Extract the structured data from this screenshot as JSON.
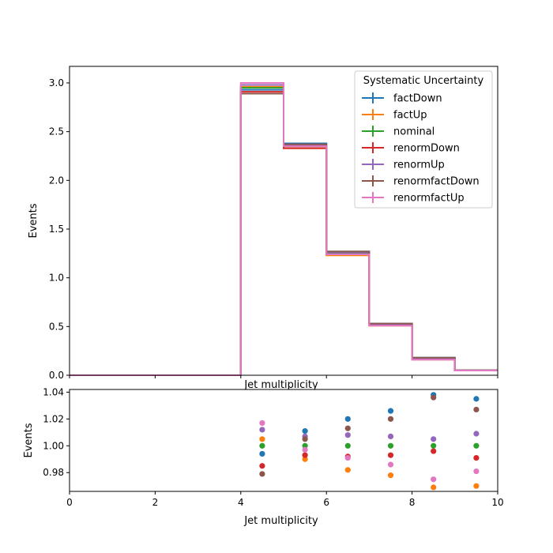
{
  "chart_data": [
    {
      "type": "line",
      "drawstyle": "steps",
      "ylabel": "Events",
      "xlabel": "Jet multiplicity",
      "xlim": [
        0,
        10
      ],
      "ylim": [
        0,
        3.17
      ],
      "x_ticks": [
        0,
        2,
        4,
        6,
        8,
        10
      ],
      "y_ticks": [
        0.0,
        0.5,
        1.0,
        1.5,
        2.0,
        2.5,
        3.0
      ],
      "y_tick_labels": [
        "0.0",
        "0.5",
        "1.0",
        "1.5",
        "2.0",
        "2.5",
        "3.0"
      ],
      "x_tick_labels_shown": false,
      "bin_edges": [
        0,
        1,
        2,
        3,
        4,
        5,
        6,
        7,
        8,
        9,
        10
      ],
      "legend_title": "Systematic Uncertainty",
      "legend_position": "upper-right",
      "series": [
        {
          "name": "factDown",
          "color": "#1f77b4",
          "values": [
            0,
            0,
            0,
            0,
            2.93,
            2.38,
            1.27,
            0.53,
            0.18,
            0.052
          ]
        },
        {
          "name": "factUp",
          "color": "#ff7f0e",
          "values": [
            0,
            0,
            0,
            0,
            2.96,
            2.33,
            1.23,
            0.51,
            0.16,
            0.049
          ]
        },
        {
          "name": "nominal",
          "color": "#2ca02c",
          "values": [
            0,
            0,
            0,
            0,
            2.95,
            2.35,
            1.25,
            0.52,
            0.17,
            0.05
          ]
        },
        {
          "name": "renormDown",
          "color": "#d62728",
          "values": [
            0,
            0,
            0,
            0,
            2.91,
            2.33,
            1.24,
            0.51,
            0.17,
            0.05
          ]
        },
        {
          "name": "renormUp",
          "color": "#9467bd",
          "values": [
            0,
            0,
            0,
            0,
            2.98,
            2.36,
            1.26,
            0.52,
            0.17,
            0.05
          ]
        },
        {
          "name": "renormfactDown",
          "color": "#8c564b",
          "values": [
            0,
            0,
            0,
            0,
            2.89,
            2.37,
            1.27,
            0.53,
            0.18,
            0.051
          ]
        },
        {
          "name": "renormfactUp",
          "color": "#e377c2",
          "values": [
            0,
            0,
            0,
            0,
            3.0,
            2.35,
            1.24,
            0.51,
            0.16,
            0.049
          ]
        }
      ]
    },
    {
      "type": "scatter",
      "ylabel": "Events",
      "xlabel": "Jet multiplicity",
      "xlim": [
        0,
        10
      ],
      "ylim": [
        0.966,
        1.042
      ],
      "x_ticks": [
        0,
        2,
        4,
        6,
        8,
        10
      ],
      "x_tick_labels": [
        "0",
        "2",
        "4",
        "6",
        "8",
        "10"
      ],
      "y_ticks": [
        0.98,
        1.0,
        1.02,
        1.04
      ],
      "y_tick_labels": [
        "0.98",
        "1.00",
        "1.02",
        "1.04"
      ],
      "x": [
        4.5,
        5.5,
        6.5,
        7.5,
        8.5,
        9.5
      ],
      "series": [
        {
          "name": "factDown",
          "color": "#1f77b4",
          "values": [
            0.994,
            1.011,
            1.02,
            1.026,
            1.038,
            1.035
          ]
        },
        {
          "name": "factUp",
          "color": "#ff7f0e",
          "values": [
            1.005,
            0.99,
            0.982,
            0.978,
            0.969,
            0.97
          ]
        },
        {
          "name": "nominal",
          "color": "#2ca02c",
          "values": [
            1.0,
            1.0,
            1.0,
            1.0,
            1.0,
            1.0
          ]
        },
        {
          "name": "renormDown",
          "color": "#d62728",
          "values": [
            0.985,
            0.993,
            0.992,
            0.993,
            0.996,
            0.991
          ]
        },
        {
          "name": "renormUp",
          "color": "#9467bd",
          "values": [
            1.012,
            1.007,
            1.008,
            1.007,
            1.005,
            1.009
          ]
        },
        {
          "name": "renormfactDown",
          "color": "#8c564b",
          "values": [
            0.979,
            1.005,
            1.013,
            1.02,
            1.036,
            1.027
          ]
        },
        {
          "name": "renormfactUp",
          "color": "#e377c2",
          "values": [
            1.017,
            0.997,
            0.991,
            0.986,
            0.975,
            0.981
          ]
        }
      ]
    }
  ]
}
